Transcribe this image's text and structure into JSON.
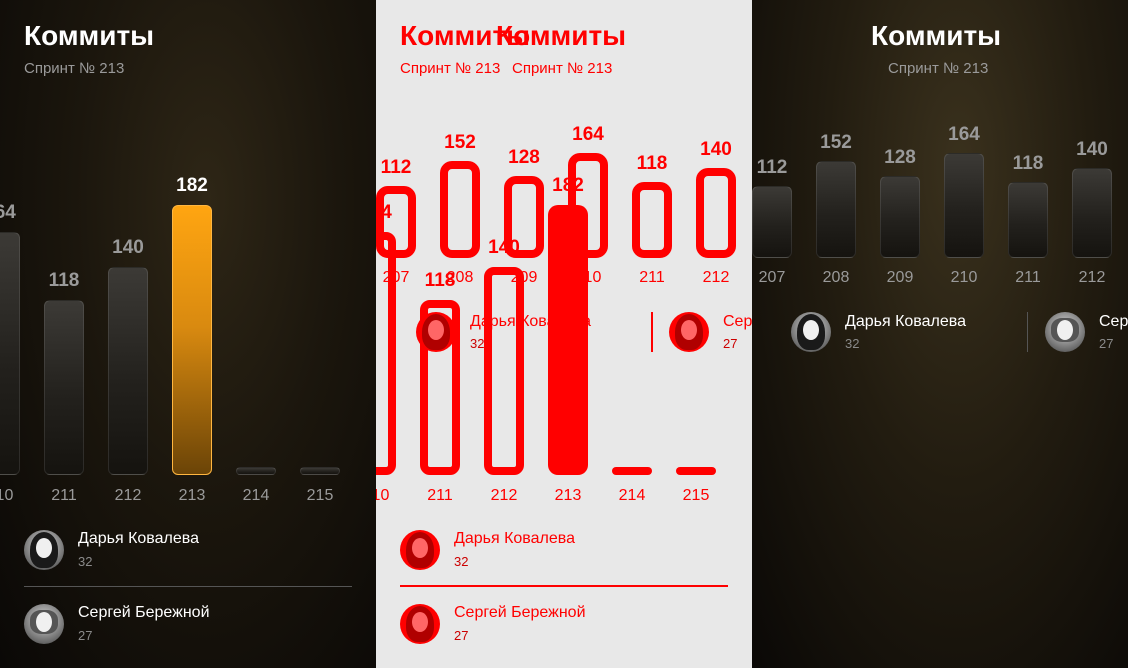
{
  "header": {
    "title": "Коммиты",
    "subtitle": "Спринт № 213"
  },
  "chart_data": {
    "type": "bar",
    "title": "Коммиты",
    "subtitle": "Спринт № 213",
    "categories": [
      "207",
      "208",
      "209",
      "210",
      "211",
      "212",
      "213",
      "214",
      "215"
    ],
    "values": [
      112,
      152,
      128,
      164,
      118,
      140,
      182,
      0,
      0
    ],
    "active_category": "213",
    "colors": {
      "active": "#f59e0b",
      "inactive": "#2b2925"
    }
  },
  "users": [
    {
      "name": "Дарья Ковалева",
      "count": "32"
    },
    {
      "name": "Сергей Бережной",
      "count": "27"
    }
  ],
  "users_truncated": {
    "second_name_left_of_mid": "Сер",
    "second_name_mid": "Серг"
  }
}
